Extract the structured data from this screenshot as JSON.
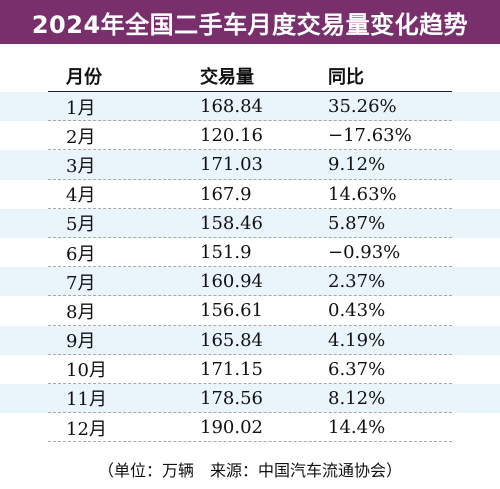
{
  "title": "2024年全国二手车月度交易量变化趋势",
  "colors": {
    "title_bg": "#7a2f6d",
    "title_text": "#ffffff",
    "stripe": "#eaf4fb"
  },
  "table": {
    "headers": [
      "月份",
      "交易量",
      "同比"
    ],
    "rows": [
      {
        "month": "1月",
        "volume": "168.84",
        "yoy": "35.26%"
      },
      {
        "month": "2月",
        "volume": "120.16",
        "yoy": "−17.63%"
      },
      {
        "month": "3月",
        "volume": "171.03",
        "yoy": "9.12%"
      },
      {
        "month": "4月",
        "volume": "167.9",
        "yoy": "14.63%"
      },
      {
        "month": "5月",
        "volume": "158.46",
        "yoy": "5.87%"
      },
      {
        "month": "6月",
        "volume": "151.9",
        "yoy": "−0.93%"
      },
      {
        "month": "7月",
        "volume": "160.94",
        "yoy": "2.37%"
      },
      {
        "month": "8月",
        "volume": "156.61",
        "yoy": "0.43%"
      },
      {
        "month": "9月",
        "volume": "165.84",
        "yoy": "4.19%"
      },
      {
        "month": "10月",
        "volume": "171.15",
        "yoy": "6.37%"
      },
      {
        "month": "11月",
        "volume": "178.56",
        "yoy": "8.12%"
      },
      {
        "month": "12月",
        "volume": "190.02",
        "yoy": "14.4%"
      }
    ]
  },
  "footnote": "（单位：万辆　来源：中国汽车流通协会）"
}
